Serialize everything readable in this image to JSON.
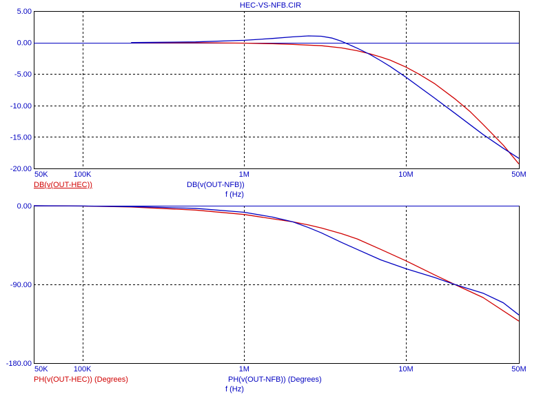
{
  "title": "HEC-VS-NFB.CIR",
  "colors": {
    "background": "#ffffff",
    "axis_text": "#0000c0",
    "series_hec": "#d00000",
    "series_nfb": "#0000c0",
    "grid": "#000000"
  },
  "chart_data": [
    {
      "type": "line",
      "xscale": "log",
      "xlim": [
        50000,
        50000000
      ],
      "ylim": [
        -20,
        5
      ],
      "yticks": [
        5,
        0,
        -5,
        -10,
        -15,
        -20
      ],
      "ytick_labels": [
        "5.00",
        "0.00",
        "-5.00",
        "-10.00",
        "-15.00",
        "-20.00"
      ],
      "xticks": [
        50000,
        100000,
        1000000,
        10000000,
        50000000
      ],
      "xtick_labels": [
        "50K",
        "100K",
        "1M",
        "10M",
        "50M"
      ],
      "xlabel": "f (Hz)",
      "grid": true,
      "series": [
        {
          "name": "DB(v(OUT-HEC))",
          "x": [
            200000,
            500000,
            1000000,
            1500000,
            2000000,
            3000000,
            4000000,
            5000000,
            6000000,
            7000000,
            8000000,
            10000000,
            12000000,
            15000000,
            20000000,
            25000000,
            30000000,
            40000000,
            50000000
          ],
          "y": [
            0.0,
            -0.03,
            -0.1,
            -0.2,
            -0.3,
            -0.5,
            -0.85,
            -1.3,
            -1.8,
            -2.3,
            -2.8,
            -3.9,
            -5.0,
            -6.5,
            -8.9,
            -11.0,
            -13.0,
            -16.3,
            -19.3
          ]
        },
        {
          "name": "DB(v(OUT-NFB))",
          "x": [
            200000,
            500000,
            1000000,
            1500000,
            2000000,
            2500000,
            3000000,
            3500000,
            4000000,
            5000000,
            6000000,
            7000000,
            8000000,
            10000000,
            12000000,
            15000000,
            20000000,
            30000000,
            40000000,
            50000000
          ],
          "y": [
            0.0,
            0.1,
            0.35,
            0.65,
            0.9,
            1.05,
            1.0,
            0.7,
            0.2,
            -0.9,
            -1.9,
            -2.9,
            -3.8,
            -5.5,
            -7.0,
            -8.8,
            -11.2,
            -14.6,
            -16.8,
            -18.4
          ]
        }
      ]
    },
    {
      "type": "line",
      "xscale": "log",
      "xlim": [
        50000,
        50000000
      ],
      "ylim": [
        -180,
        0
      ],
      "yticks": [
        0,
        -90,
        -180
      ],
      "ytick_labels": [
        "0.00",
        "-90.00",
        "-180.00"
      ],
      "xticks": [
        50000,
        100000,
        1000000,
        10000000,
        50000000
      ],
      "xtick_labels": [
        "50K",
        "100K",
        "1M",
        "10M",
        "50M"
      ],
      "xlabel": "f (Hz)",
      "grid": true,
      "series": [
        {
          "name": "PH(v(OUT-HEC)) (Degrees)",
          "x": [
            50000,
            100000,
            200000,
            500000,
            1000000,
            1500000,
            2000000,
            2500000,
            3000000,
            4000000,
            5000000,
            7000000,
            10000000,
            15000000,
            20000000,
            30000000,
            50000000
          ],
          "y": [
            0,
            -0.4,
            -1.5,
            -5,
            -10,
            -15,
            -18.5,
            -22,
            -25.5,
            -32,
            -38,
            -50,
            -63,
            -79,
            -90,
            -105,
            -132
          ]
        },
        {
          "name": "PH(v(OUT-NFB)) (Degrees)",
          "x": [
            50000,
            100000,
            200000,
            500000,
            1000000,
            1500000,
            2000000,
            2500000,
            3000000,
            4000000,
            5000000,
            7000000,
            10000000,
            15000000,
            20000000,
            30000000,
            40000000,
            50000000
          ],
          "y": [
            0,
            -0.3,
            -1,
            -3,
            -7.5,
            -13,
            -18.5,
            -25,
            -31,
            -42,
            -50,
            -62,
            -72,
            -82,
            -90,
            -100,
            -111,
            -125
          ]
        }
      ]
    }
  ],
  "legends": {
    "top_left": "DB(v(OUT-HEC))",
    "top_right": "DB(v(OUT-NFB))",
    "bottom_left": "PH(v(OUT-HEC)) (Degrees)",
    "bottom_right": "PH(v(OUT-NFB)) (Degrees)"
  }
}
